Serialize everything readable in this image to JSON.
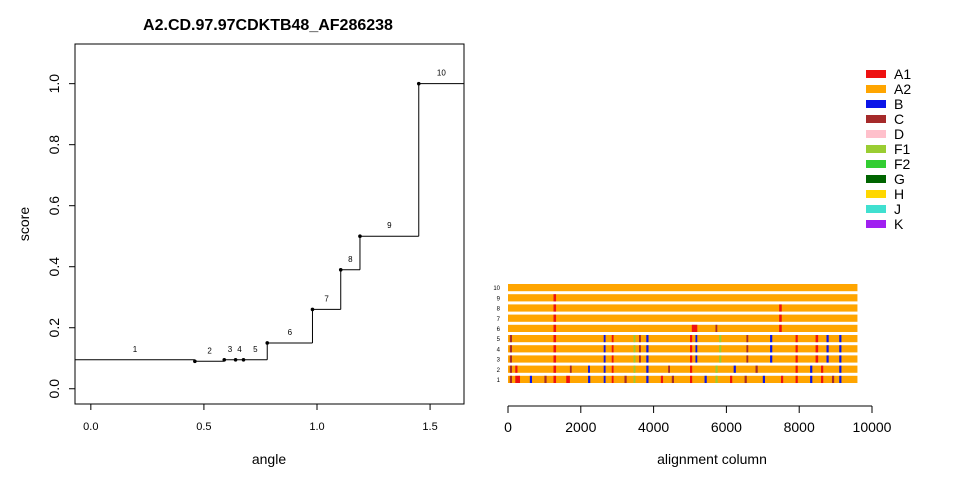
{
  "title": "A2.CD.97.97CDKTB48_AF286238",
  "chart_data": [
    {
      "type": "line",
      "subtype": "step",
      "title": "A2.CD.97.97CDKTB48_AF286238",
      "xlabel": "angle",
      "ylabel": "score",
      "xlim": [
        -0.07,
        1.65
      ],
      "ylim": [
        -0.05,
        1.13
      ],
      "xticks": [
        0.0,
        0.5,
        1.0,
        1.5
      ],
      "xtick_labels": [
        "0.0",
        "0.5",
        "1.0",
        "1.5"
      ],
      "yticks": [
        0.0,
        0.2,
        0.4,
        0.6,
        0.8,
        1.0
      ],
      "ytick_labels": [
        "0.0",
        "0.2",
        "0.4",
        "0.6",
        "0.8",
        "1.0"
      ],
      "grid": false,
      "points": [
        {
          "label": "1",
          "x": 0.46,
          "y": 0.09
        },
        {
          "label": "2",
          "x": 0.59,
          "y": 0.095
        },
        {
          "label": "3",
          "x": 0.64,
          "y": 0.095
        },
        {
          "label": "4",
          "x": 0.675,
          "y": 0.095
        },
        {
          "label": "5",
          "x": 0.78,
          "y": 0.15
        },
        {
          "label": "6",
          "x": 0.98,
          "y": 0.26
        },
        {
          "label": "7",
          "x": 1.105,
          "y": 0.39
        },
        {
          "label": "8",
          "x": 1.19,
          "y": 0.5
        },
        {
          "label": "9",
          "x": 1.45,
          "y": 1.0
        },
        {
          "label": "10",
          "x": 1.65,
          "y": 1.0
        }
      ],
      "step_start": {
        "x": -0.07,
        "y": 0.095
      }
    },
    {
      "type": "heatmap",
      "subtype": "alignment-tracks",
      "xlabel": "alignment column",
      "xlim": [
        0,
        10000
      ],
      "xticks": [
        0,
        2000,
        4000,
        6000,
        8000,
        10000
      ],
      "xtick_labels": [
        "0",
        "2000",
        "4000",
        "6000",
        "8000",
        "10000"
      ],
      "alignment_length": 9600,
      "base_color": "#FFA500",
      "tracks": [
        {
          "label": "10",
          "segments": []
        },
        {
          "label": "9",
          "segments": [
            {
              "start": 1250,
              "end": 1320,
              "subtype": "A1"
            }
          ]
        },
        {
          "label": "8",
          "segments": [
            {
              "start": 1250,
              "end": 1320,
              "subtype": "A1"
            },
            {
              "start": 7450,
              "end": 7520,
              "subtype": "A1"
            }
          ]
        },
        {
          "label": "7",
          "segments": [
            {
              "start": 1250,
              "end": 1320,
              "subtype": "A1"
            },
            {
              "start": 7450,
              "end": 7520,
              "subtype": "A1"
            }
          ]
        },
        {
          "label": "6",
          "segments": [
            {
              "start": 1250,
              "end": 1320,
              "subtype": "A1"
            },
            {
              "start": 5050,
              "end": 5200,
              "subtype": "A1"
            },
            {
              "start": 5700,
              "end": 5750,
              "subtype": "C"
            },
            {
              "start": 7450,
              "end": 7520,
              "subtype": "A1"
            }
          ]
        },
        {
          "label": "5",
          "segments": [
            {
              "start": 50,
              "end": 110,
              "subtype": "C"
            },
            {
              "start": 1250,
              "end": 1320,
              "subtype": "A1"
            },
            {
              "start": 2630,
              "end": 2680,
              "subtype": "B"
            },
            {
              "start": 2850,
              "end": 2900,
              "subtype": "A1"
            },
            {
              "start": 3450,
              "end": 3500,
              "subtype": "F1"
            },
            {
              "start": 3600,
              "end": 3650,
              "subtype": "C"
            },
            {
              "start": 3800,
              "end": 3860,
              "subtype": "B"
            },
            {
              "start": 5000,
              "end": 5060,
              "subtype": "A1"
            },
            {
              "start": 5150,
              "end": 5200,
              "subtype": "B"
            },
            {
              "start": 5800,
              "end": 5860,
              "subtype": "F1"
            },
            {
              "start": 6550,
              "end": 6600,
              "subtype": "C"
            },
            {
              "start": 7200,
              "end": 7260,
              "subtype": "B"
            },
            {
              "start": 7900,
              "end": 7960,
              "subtype": "A1"
            },
            {
              "start": 8450,
              "end": 8520,
              "subtype": "A1"
            },
            {
              "start": 8750,
              "end": 8810,
              "subtype": "B"
            },
            {
              "start": 9100,
              "end": 9160,
              "subtype": "B"
            }
          ]
        },
        {
          "label": "4",
          "segments": [
            {
              "start": 50,
              "end": 110,
              "subtype": "C"
            },
            {
              "start": 1250,
              "end": 1320,
              "subtype": "A1"
            },
            {
              "start": 2630,
              "end": 2680,
              "subtype": "B"
            },
            {
              "start": 2850,
              "end": 2900,
              "subtype": "A1"
            },
            {
              "start": 3450,
              "end": 3500,
              "subtype": "F1"
            },
            {
              "start": 3600,
              "end": 3650,
              "subtype": "C"
            },
            {
              "start": 3800,
              "end": 3860,
              "subtype": "B"
            },
            {
              "start": 5000,
              "end": 5060,
              "subtype": "A1"
            },
            {
              "start": 5150,
              "end": 5200,
              "subtype": "B"
            },
            {
              "start": 5800,
              "end": 5860,
              "subtype": "F1"
            },
            {
              "start": 6550,
              "end": 6600,
              "subtype": "C"
            },
            {
              "start": 7200,
              "end": 7260,
              "subtype": "B"
            },
            {
              "start": 7900,
              "end": 7960,
              "subtype": "A1"
            },
            {
              "start": 8450,
              "end": 8520,
              "subtype": "A1"
            },
            {
              "start": 8750,
              "end": 8810,
              "subtype": "B"
            },
            {
              "start": 9100,
              "end": 9160,
              "subtype": "B"
            }
          ]
        },
        {
          "label": "3",
          "segments": [
            {
              "start": 50,
              "end": 110,
              "subtype": "C"
            },
            {
              "start": 1250,
              "end": 1320,
              "subtype": "A1"
            },
            {
              "start": 2630,
              "end": 2680,
              "subtype": "B"
            },
            {
              "start": 2850,
              "end": 2900,
              "subtype": "A1"
            },
            {
              "start": 3450,
              "end": 3500,
              "subtype": "F1"
            },
            {
              "start": 3600,
              "end": 3650,
              "subtype": "C"
            },
            {
              "start": 3800,
              "end": 3860,
              "subtype": "B"
            },
            {
              "start": 5000,
              "end": 5060,
              "subtype": "A1"
            },
            {
              "start": 5150,
              "end": 5200,
              "subtype": "B"
            },
            {
              "start": 5800,
              "end": 5860,
              "subtype": "F1"
            },
            {
              "start": 6550,
              "end": 6600,
              "subtype": "C"
            },
            {
              "start": 7200,
              "end": 7260,
              "subtype": "B"
            },
            {
              "start": 7900,
              "end": 7960,
              "subtype": "A1"
            },
            {
              "start": 8450,
              "end": 8520,
              "subtype": "A1"
            },
            {
              "start": 8750,
              "end": 8810,
              "subtype": "B"
            },
            {
              "start": 9100,
              "end": 9160,
              "subtype": "B"
            }
          ]
        },
        {
          "label": "2",
          "segments": [
            {
              "start": 50,
              "end": 110,
              "subtype": "C"
            },
            {
              "start": 200,
              "end": 260,
              "subtype": "A1"
            },
            {
              "start": 1250,
              "end": 1320,
              "subtype": "A1"
            },
            {
              "start": 1700,
              "end": 1750,
              "subtype": "C"
            },
            {
              "start": 2200,
              "end": 2250,
              "subtype": "B"
            },
            {
              "start": 2630,
              "end": 2680,
              "subtype": "B"
            },
            {
              "start": 2850,
              "end": 2900,
              "subtype": "A1"
            },
            {
              "start": 3450,
              "end": 3500,
              "subtype": "F1"
            },
            {
              "start": 3800,
              "end": 3860,
              "subtype": "B"
            },
            {
              "start": 4400,
              "end": 4450,
              "subtype": "C"
            },
            {
              "start": 5000,
              "end": 5060,
              "subtype": "A1"
            },
            {
              "start": 5700,
              "end": 5760,
              "subtype": "F1"
            },
            {
              "start": 6200,
              "end": 6260,
              "subtype": "B"
            },
            {
              "start": 6800,
              "end": 6860,
              "subtype": "C"
            },
            {
              "start": 7900,
              "end": 7960,
              "subtype": "A1"
            },
            {
              "start": 8300,
              "end": 8360,
              "subtype": "B"
            },
            {
              "start": 8600,
              "end": 8660,
              "subtype": "A1"
            },
            {
              "start": 9100,
              "end": 9160,
              "subtype": "B"
            }
          ]
        },
        {
          "label": "1",
          "segments": [
            {
              "start": 50,
              "end": 110,
              "subtype": "C"
            },
            {
              "start": 200,
              "end": 330,
              "subtype": "A1"
            },
            {
              "start": 600,
              "end": 660,
              "subtype": "B"
            },
            {
              "start": 1000,
              "end": 1060,
              "subtype": "C"
            },
            {
              "start": 1250,
              "end": 1320,
              "subtype": "A1"
            },
            {
              "start": 1600,
              "end": 1700,
              "subtype": "A1"
            },
            {
              "start": 2200,
              "end": 2260,
              "subtype": "B"
            },
            {
              "start": 2630,
              "end": 2680,
              "subtype": "B"
            },
            {
              "start": 2850,
              "end": 2900,
              "subtype": "A1"
            },
            {
              "start": 3200,
              "end": 3260,
              "subtype": "C"
            },
            {
              "start": 3450,
              "end": 3500,
              "subtype": "F1"
            },
            {
              "start": 3800,
              "end": 3860,
              "subtype": "B"
            },
            {
              "start": 4200,
              "end": 4260,
              "subtype": "A1"
            },
            {
              "start": 4500,
              "end": 4560,
              "subtype": "C"
            },
            {
              "start": 5000,
              "end": 5060,
              "subtype": "A1"
            },
            {
              "start": 5400,
              "end": 5460,
              "subtype": "B"
            },
            {
              "start": 5700,
              "end": 5760,
              "subtype": "F1"
            },
            {
              "start": 6100,
              "end": 6160,
              "subtype": "A1"
            },
            {
              "start": 6500,
              "end": 6560,
              "subtype": "C"
            },
            {
              "start": 7000,
              "end": 7060,
              "subtype": "B"
            },
            {
              "start": 7500,
              "end": 7560,
              "subtype": "A1"
            },
            {
              "start": 7900,
              "end": 7960,
              "subtype": "A1"
            },
            {
              "start": 8300,
              "end": 8360,
              "subtype": "B"
            },
            {
              "start": 8600,
              "end": 8660,
              "subtype": "A1"
            },
            {
              "start": 8900,
              "end": 8960,
              "subtype": "C"
            },
            {
              "start": 9100,
              "end": 9160,
              "subtype": "B"
            }
          ]
        }
      ]
    }
  ],
  "legend": {
    "placement": "top-right",
    "items": [
      {
        "label": "A1",
        "color": "#EE1111"
      },
      {
        "label": "A2",
        "color": "#FFA500"
      },
      {
        "label": "B",
        "color": "#0B15E8"
      },
      {
        "label": "C",
        "color": "#A52A2A"
      },
      {
        "label": "D",
        "color": "#FFC0CB"
      },
      {
        "label": "F1",
        "color": "#9ACD32"
      },
      {
        "label": "F2",
        "color": "#32CD32"
      },
      {
        "label": "G",
        "color": "#006400"
      },
      {
        "label": "H",
        "color": "#FFD700"
      },
      {
        "label": "J",
        "color": "#40E0D0"
      },
      {
        "label": "K",
        "color": "#A020F0"
      }
    ]
  }
}
